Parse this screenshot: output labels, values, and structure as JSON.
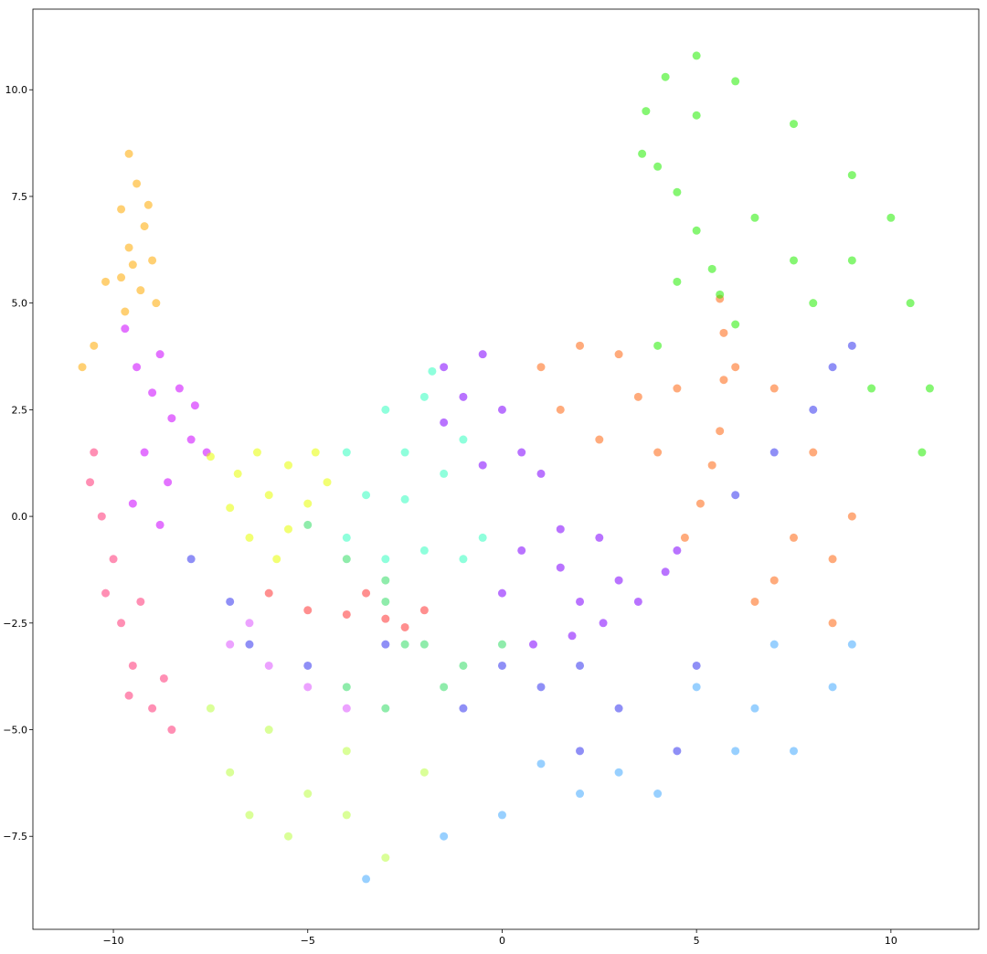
{
  "chart_data": {
    "type": "scatter",
    "xlim": [
      -12.07,
      12.26
    ],
    "ylim": [
      -9.68,
      11.89
    ],
    "xticks": [
      {
        "value": -10,
        "label": "−10"
      },
      {
        "value": -5,
        "label": "−5"
      },
      0,
      5,
      10
    ],
    "yticks": [
      {
        "value": -7.5,
        "label": "−7.5"
      },
      {
        "value": -5,
        "label": "−5.0"
      },
      {
        "value": -2.5,
        "label": "−2.5"
      },
      {
        "value": 0,
        "label": "0.0"
      },
      2.5,
      {
        "value": 5,
        "label": "5.0"
      },
      7.5,
      {
        "value": 10,
        "label": "10.0"
      }
    ],
    "grid": false,
    "series": [
      {
        "color": "#ffaa00",
        "x": [
          -9.6,
          -9.4,
          -9.8,
          -9.2,
          -9.6,
          -9.0,
          -9.8,
          -9.3,
          -8.9,
          -9.7,
          -10.2,
          -10.5,
          -10.8,
          -9.1,
          -9.5
        ],
        "values": [
          8.5,
          7.8,
          7.2,
          6.8,
          6.3,
          6.0,
          5.6,
          5.3,
          5.0,
          4.8,
          5.5,
          4.0,
          3.5,
          7.3,
          5.9
        ]
      },
      {
        "color": "#cc00ff",
        "x": [
          -9.7,
          -9.4,
          -9.0,
          -8.5,
          -8.0,
          -7.6,
          -8.8,
          -8.3,
          -9.2,
          -8.6,
          -9.5,
          -7.9,
          -8.8
        ],
        "values": [
          4.4,
          3.5,
          2.9,
          2.3,
          1.8,
          1.5,
          3.8,
          3.0,
          1.5,
          0.8,
          0.3,
          2.6,
          -0.2
        ]
      },
      {
        "color": "#ff3377",
        "x": [
          -10.5,
          -10.3,
          -10.0,
          -9.8,
          -9.5,
          -9.0,
          -8.5,
          -10.2,
          -9.3,
          -8.7,
          -9.6,
          -10.6
        ],
        "values": [
          1.5,
          0.0,
          -1.0,
          -2.5,
          -3.5,
          -4.5,
          -5.0,
          -1.8,
          -2.0,
          -3.8,
          -4.2,
          0.8
        ]
      },
      {
        "color": "#e8ff00",
        "x": [
          -7.5,
          -6.8,
          -6.0,
          -5.5,
          -4.8,
          -5.0,
          -6.5,
          -5.8,
          -7.0,
          -4.5,
          -5.5,
          -6.3
        ],
        "values": [
          1.4,
          1.0,
          0.5,
          1.2,
          1.5,
          0.3,
          -0.5,
          -1.0,
          0.2,
          0.8,
          -0.3,
          1.5
        ]
      },
      {
        "color": "#33ffc0",
        "x": [
          -4.0,
          -3.0,
          -2.0,
          -2.5,
          -1.5,
          -3.5,
          -1.0,
          -2.0,
          -1.0,
          -3.0,
          -4.0,
          -0.5,
          -2.5,
          -1.8
        ],
        "values": [
          1.5,
          2.5,
          2.8,
          1.5,
          1.0,
          0.5,
          1.8,
          -0.8,
          -1.0,
          -1.0,
          -0.5,
          -0.5,
          0.4,
          3.4
        ]
      },
      {
        "color": "#8000ff",
        "x": [
          -1.5,
          -1.0,
          -0.5,
          0,
          0.5,
          -0.5,
          1,
          -1.5,
          0.5,
          1.5,
          2.5,
          3,
          0,
          2,
          1.5,
          0.8,
          1.8,
          2.6,
          3.5,
          4.2,
          4.5
        ],
        "values": [
          3.5,
          2.8,
          3.8,
          2.5,
          1.5,
          1.2,
          1.0,
          2.2,
          -0.8,
          -1.2,
          -0.5,
          -1.5,
          -1.8,
          -2,
          -0.3,
          -3.0,
          -2.8,
          -2.5,
          -2.0,
          -1.3,
          -0.8
        ]
      },
      {
        "color": "#ff6610",
        "x": [
          1,
          2,
          3,
          1.5,
          3.5,
          4.5,
          2.5,
          4,
          6,
          7,
          8,
          7.5,
          8.5,
          7,
          9,
          6.5,
          8.5,
          5.6,
          5.7,
          5.7,
          5.6,
          5.4,
          5.1,
          4.7
        ],
        "values": [
          3.5,
          4,
          3.8,
          2.5,
          2.8,
          3,
          1.8,
          1.5,
          3.5,
          3.0,
          1.5,
          -0.5,
          -1.0,
          -1.5,
          0.0,
          -2.0,
          -2.5,
          5.1,
          4.3,
          3.2,
          2.0,
          1.2,
          0.3,
          -0.5
        ]
      },
      {
        "color": "#22ee00",
        "x": [
          3.6,
          4.0,
          4.5,
          5.0,
          5.4,
          5.6,
          3.7,
          4.2,
          5,
          6,
          7.5,
          9,
          10,
          10.5,
          11,
          10.8,
          6.5,
          7.5,
          8,
          6,
          9,
          4.5,
          4.0,
          5,
          9.5
        ],
        "values": [
          8.5,
          8.2,
          7.6,
          6.7,
          5.8,
          5.2,
          9.5,
          10.3,
          10.8,
          10.2,
          9.2,
          8,
          7,
          5,
          3,
          1.5,
          7,
          6,
          5,
          4.5,
          6,
          5.5,
          4,
          9.4,
          3
        ]
      },
      {
        "color": "#3333ee",
        "x": [
          -8,
          -7,
          -6.5,
          -5,
          -3,
          0,
          1,
          2,
          3,
          4.5,
          2,
          6,
          7,
          8,
          8.5,
          9,
          5,
          -1
        ],
        "values": [
          -1,
          -2,
          -3,
          -3.5,
          -3,
          -3.5,
          -4,
          -3.5,
          -4.5,
          -5.5,
          -5.5,
          0.5,
          1.5,
          2.5,
          3.5,
          4.0,
          -3.5,
          -4.5
        ]
      },
      {
        "color": "#44aaff",
        "x": [
          5,
          6.5,
          7.5,
          8.5,
          9,
          6,
          4,
          2,
          0,
          -1.5,
          -3.5,
          3,
          7,
          1
        ],
        "values": [
          -4,
          -4.5,
          -5.5,
          -4,
          -3,
          -5.5,
          -6.5,
          -6.5,
          -7,
          -7.5,
          -8.5,
          -6,
          -3,
          -5.8
        ]
      },
      {
        "color": "#33dd66",
        "x": [
          -3,
          -2,
          -1,
          -3,
          -1.5,
          -2.5,
          -4,
          0,
          -5,
          -4,
          -3
        ],
        "values": [
          -2,
          -3,
          -3.5,
          -4.5,
          -4,
          -3,
          -4,
          -3,
          -0.2,
          -1,
          -1.5
        ]
      },
      {
        "color": "#bbff44",
        "x": [
          -6,
          -7,
          -5,
          -4,
          -3,
          -5.5,
          -7.5,
          -4,
          -2,
          -6.5
        ],
        "values": [
          -5,
          -6,
          -6.5,
          -7,
          -8,
          -7.5,
          -4.5,
          -5.5,
          -6,
          -7
        ]
      },
      {
        "color": "#ff3333",
        "x": [
          -6,
          -5,
          -4,
          -3,
          -2.5,
          -2.0,
          -3.5
        ],
        "values": [
          -1.8,
          -2.2,
          -2.3,
          -2.4,
          -2.6,
          -2.2,
          -1.8
        ]
      },
      {
        "color": "#dd55ff",
        "x": [
          -7,
          -6,
          -5,
          -4,
          -6.5
        ],
        "values": [
          -3,
          -3.5,
          -4,
          -4.5,
          -2.5
        ]
      }
    ]
  }
}
